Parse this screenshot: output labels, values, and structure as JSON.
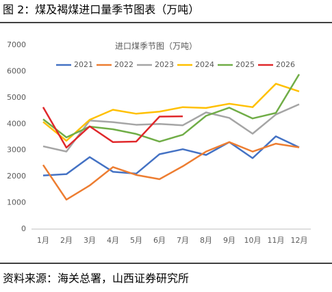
{
  "header": {
    "title": "图 2：煤及褐煤进口量季节图表（万吨）"
  },
  "footer": {
    "source": "资料来源：海关总署，山西证券研究所"
  },
  "chart_data": {
    "type": "line",
    "title": "进口煤季节图（万吨）",
    "categories": [
      "1月",
      "2月",
      "3月",
      "4月",
      "5月",
      "6月",
      "7月",
      "8月",
      "9月",
      "10月",
      "11月",
      "12月"
    ],
    "series": [
      {
        "name": "2021",
        "color": "#4472c4",
        "values": [
          2040,
          2090,
          2740,
          2180,
          2110,
          2850,
          3040,
          2820,
          3310,
          2700,
          3530,
          3110
        ]
      },
      {
        "name": "2022",
        "color": "#ed7d31",
        "values": [
          2440,
          1120,
          1660,
          2360,
          2060,
          1900,
          2390,
          2950,
          3310,
          2950,
          3250,
          3110
        ]
      },
      {
        "name": "2023",
        "color": "#a5a5a5",
        "values": [
          3150,
          2950,
          4130,
          4070,
          3970,
          4000,
          3950,
          4440,
          4230,
          3630,
          4360,
          4750
        ]
      },
      {
        "name": "2024",
        "color": "#ffc000",
        "values": [
          4080,
          3360,
          4160,
          4540,
          4390,
          4470,
          4640,
          4610,
          4770,
          4640,
          5530,
          5240
        ]
      },
      {
        "name": "2025",
        "color": "#70ad47",
        "values": [
          4180,
          3490,
          3900,
          3800,
          3620,
          3330,
          3590,
          4310,
          4620,
          4210,
          4420,
          5890
        ]
      },
      {
        "name": "2026",
        "color": "#e0282b",
        "values": [
          4640,
          3100,
          3910,
          3310,
          3330,
          4280,
          4290,
          null,
          null,
          null,
          null,
          null
        ]
      }
    ],
    "ylim": [
      0,
      7000
    ],
    "yticks": [
      0,
      1000,
      2000,
      3000,
      4000,
      5000,
      6000,
      7000
    ],
    "grid": false,
    "legend": "top"
  }
}
